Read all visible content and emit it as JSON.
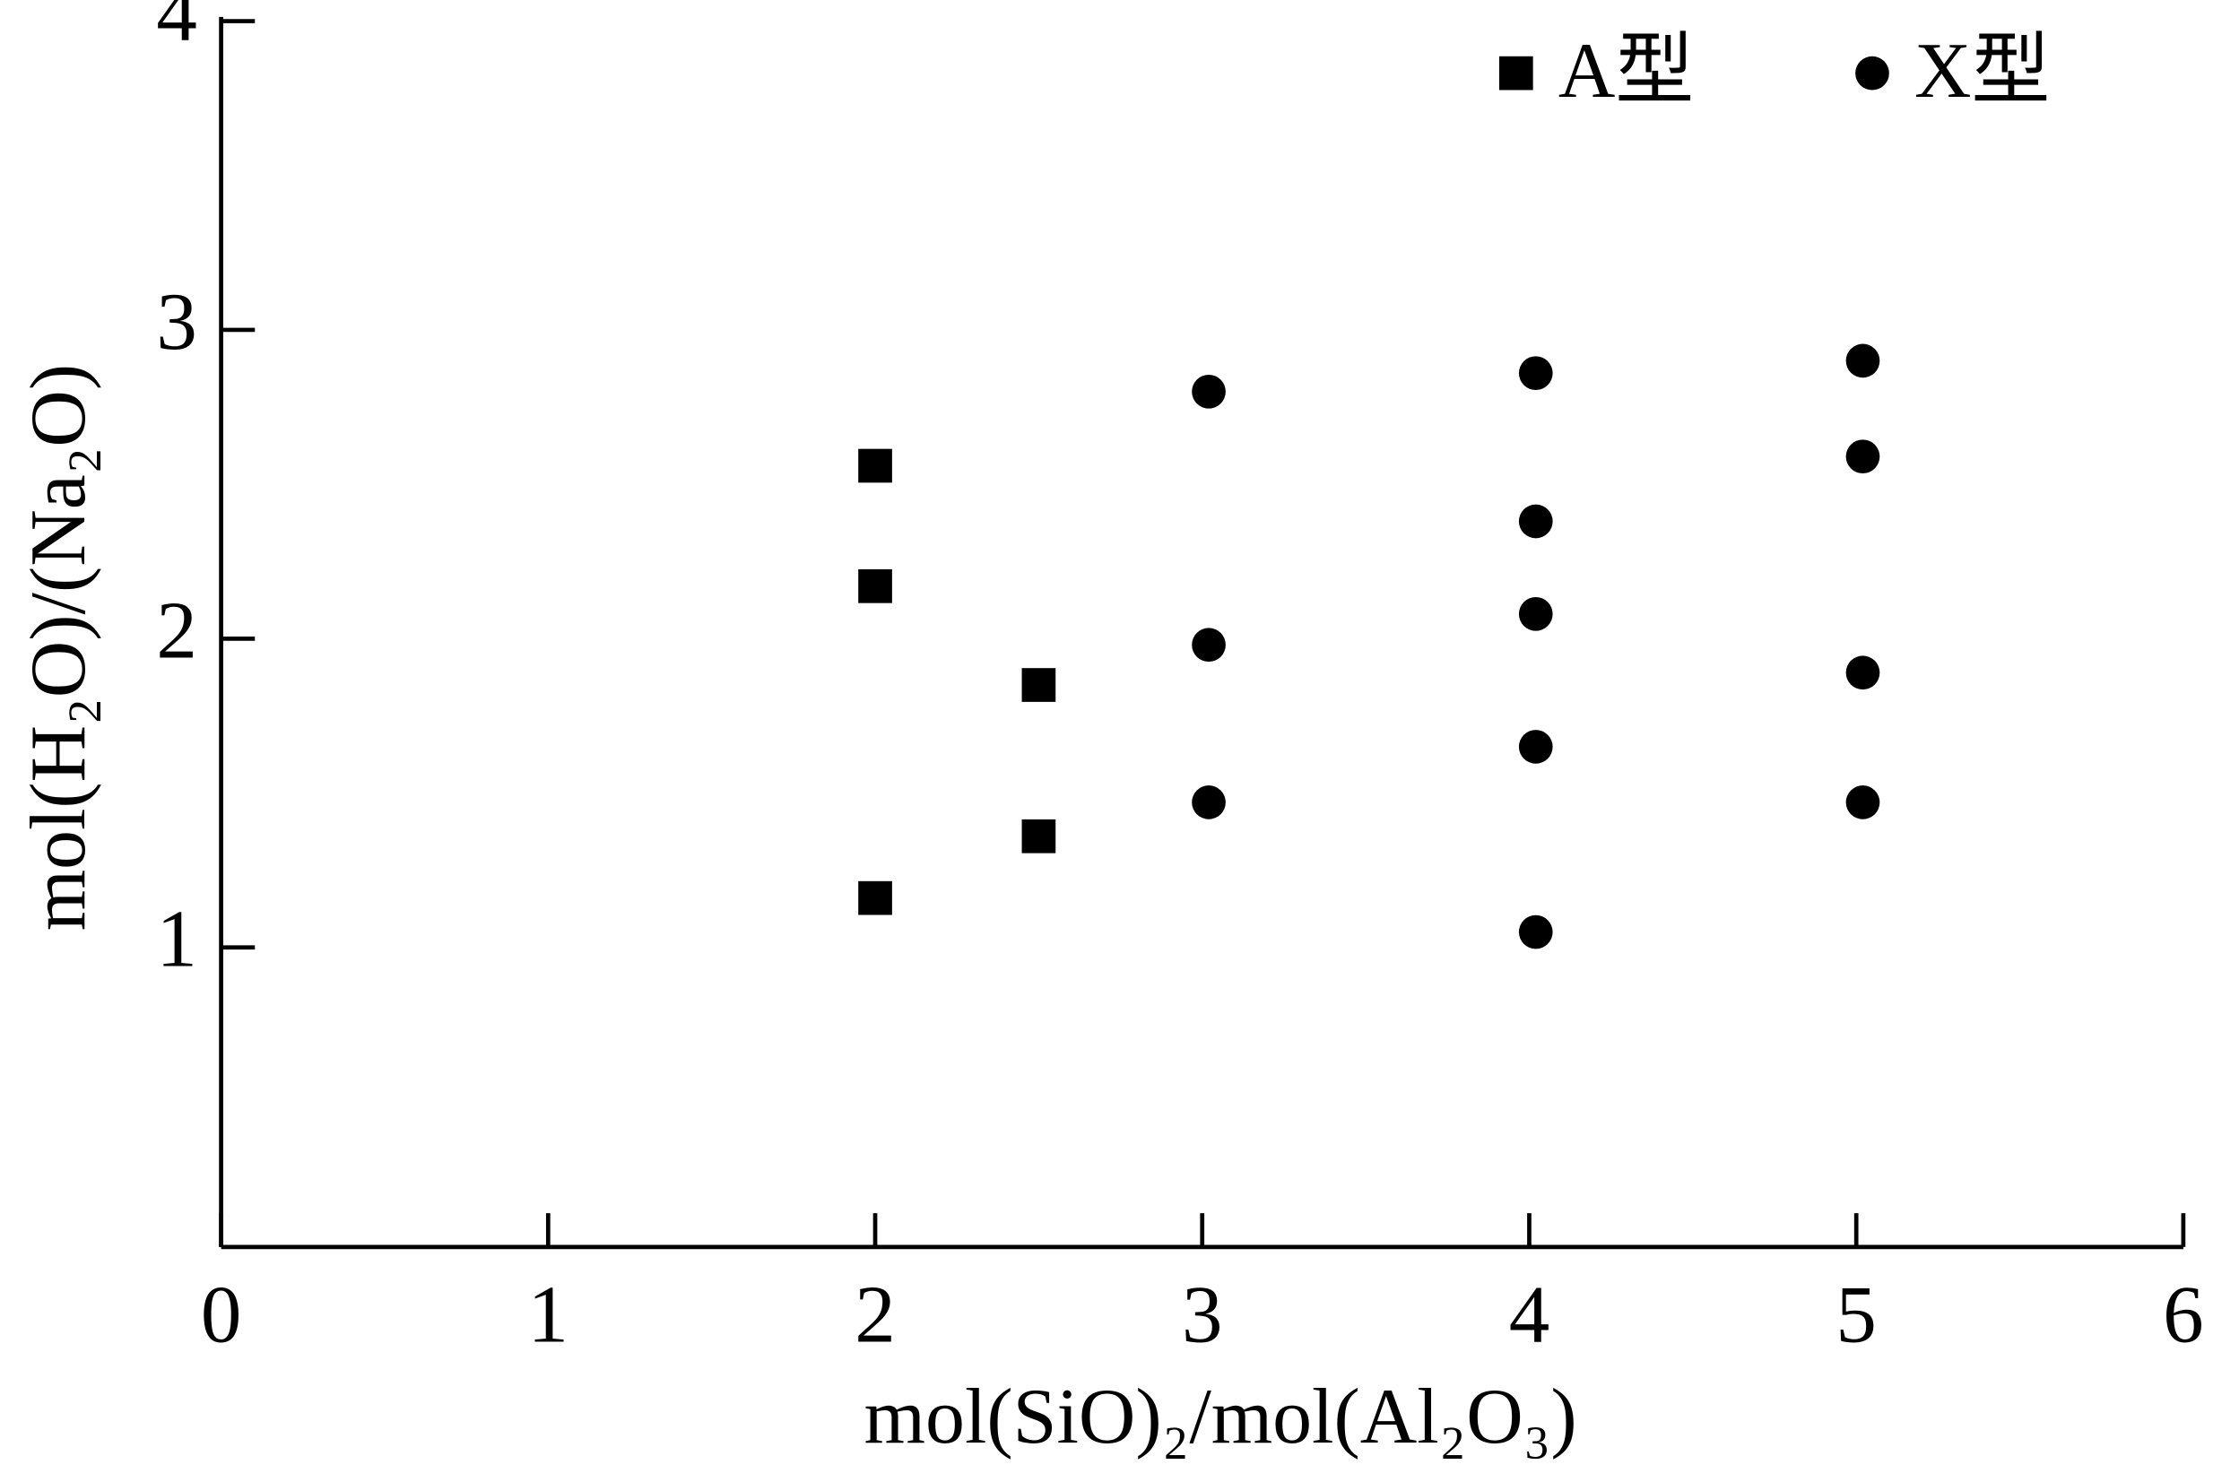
{
  "chart_data": {
    "type": "scatter",
    "xlabel": "mol(SiO)₂/mol(Al₂O₃)",
    "ylabel": "mol(H₂O)/(Na₂O)",
    "xlim": [
      0,
      6
    ],
    "xticks": [
      0,
      1,
      2,
      3,
      4,
      5,
      6
    ],
    "ylim": [
      0.03,
      4
    ],
    "yticks": [
      1,
      2,
      3,
      4
    ],
    "legend_position": "upper right",
    "series": [
      {
        "name": "A型",
        "color": "#000000",
        "marker": "square",
        "x": [
          2,
          2,
          2.5,
          2.5,
          2
        ],
        "values": [
          2.56,
          2.17,
          1.85,
          1.36,
          1.16
        ]
      },
      {
        "name": "X型",
        "color": "#000000",
        "marker": "circle",
        "x": [
          3.02,
          3.02,
          3.02,
          4.02,
          4.02,
          4.02,
          4.02,
          4.02,
          5.02,
          5.02,
          5.02,
          5.02
        ],
        "values": [
          2.8,
          1.98,
          1.47,
          2.86,
          2.38,
          2.08,
          1.65,
          1.05,
          2.9,
          2.59,
          1.89,
          1.47
        ]
      }
    ]
  }
}
